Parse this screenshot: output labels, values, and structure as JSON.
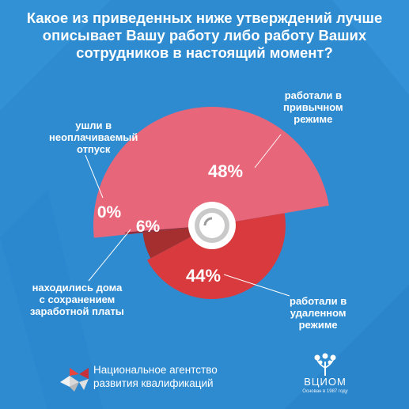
{
  "title": "Какое из приведенных ниже утверждений лучше описывает Вашу работу либо работу Ваших сотрудников в настоящий момент?",
  "colors": {
    "background": "#2f8bd0",
    "regular": "#e8667a",
    "remote": "#d83a3e",
    "paid_home": "#a52f2e",
    "unpaid": "#8c2e3b"
  },
  "chart_data": {
    "type": "pie",
    "title": "Какое из приведенных ниже утверждений лучше описывает Вашу работу либо работу Ваших сотрудников в настоящий момент?",
    "slices": [
      {
        "label": "работали в привычном режиме",
        "value": 48,
        "percent_label": "48%",
        "color": "#e8667a"
      },
      {
        "label": "работали в удаленном режиме",
        "value": 44,
        "percent_label": "44%",
        "color": "#d83a3e"
      },
      {
        "label": "находились дома с сохранением заработной платы",
        "value": 6,
        "percent_label": "6%",
        "color": "#a52f2e"
      },
      {
        "label": "ушли в неоплачиваемый отпуск",
        "value": 0,
        "percent_label": "0%",
        "color": "#8c2e3b"
      }
    ]
  },
  "labels": {
    "regular": "работали в\nпривычном\nрежиме",
    "remote": "работали в\nудаленном\nрежиме",
    "paid_home": "находились дома\nс сохранением\nзаработной платы",
    "unpaid": "ушли в\nнеоплачиваемый\nотпуск"
  },
  "footer": {
    "agency": "Национальное агентство\nразвития квалификаций",
    "vciom_name": "ВЦИОМ",
    "vciom_tagline": "Основан в 1987 году"
  }
}
